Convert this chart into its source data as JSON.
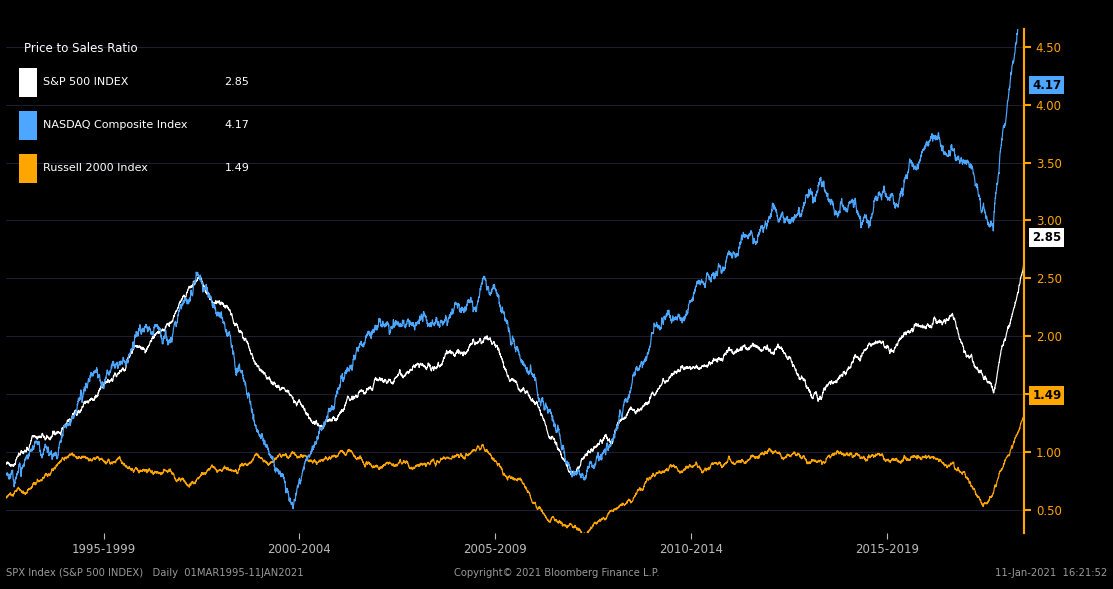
{
  "title": "Price to Sales Ratio",
  "background_color": "#000000",
  "series": {
    "sp500": {
      "label": "S&P 500 INDEX",
      "value": "2.85",
      "color": "#ffffff"
    },
    "nasdaq": {
      "label": "NASDAQ Composite Index",
      "value": "4.17",
      "color": "#4da6ff"
    },
    "russell": {
      "label": "Russell 2000 Index",
      "value": "1.49",
      "color": "#ffa500"
    }
  },
  "ylim": [
    0.3,
    4.65
  ],
  "yticks": [
    0.5,
    1.0,
    1.5,
    2.0,
    2.5,
    3.0,
    3.5,
    4.0,
    4.5
  ],
  "x_labels": [
    "1995-1999",
    "2000-2004",
    "2005-2009",
    "2010-2014",
    "2015-2019"
  ],
  "footer_left": "SPX Index (S&P 500 INDEX)   Daily  01MAR1995-11JAN2021",
  "footer_center": "Copyright© 2021 Bloomberg Finance L.P.",
  "footer_right": "11-Jan-2021  16:21:52",
  "right_axis_color": "#ffa500",
  "grid_color": "#2a2a4a",
  "tick_color": "#ffa500"
}
